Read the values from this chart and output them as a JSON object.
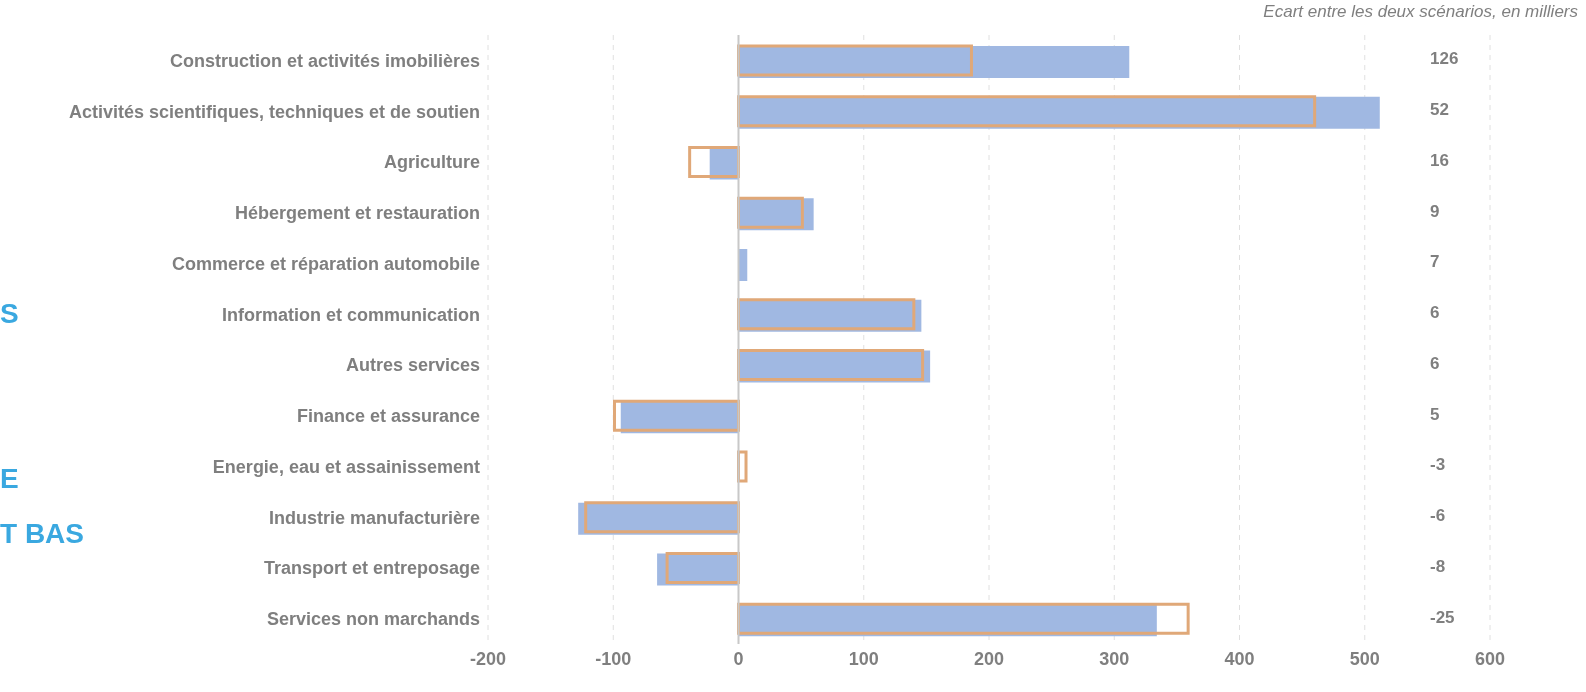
{
  "chart_data": {
    "type": "bar",
    "orientation": "horizontal",
    "subtitle": "Ecart entre les deux scénarios, en milliers",
    "categories": [
      "Construction et activités imobilières",
      "Activités scientifiques, techniques et de soutien",
      "Agriculture",
      "Hébergement et restauration",
      "Commerce et réparation automobile",
      "Information et communication",
      "Autres services",
      "Finance et assurance",
      "Energie, eau et assainissement",
      "Industrie manufacturière",
      "Transport et entreposage",
      "Services non marchands"
    ],
    "series": [
      {
        "color": "#a0b8e2",
        "values": [
          312,
          512,
          -23,
          60,
          7,
          146,
          153,
          -94,
          null,
          -128,
          -65,
          334
        ]
      },
      {
        "color": "#e0a878",
        "values": [
          186,
          460,
          -39,
          51,
          0,
          140,
          147,
          -99,
          6,
          -122,
          -57,
          359
        ]
      }
    ],
    "xlim": [
      -200,
      600
    ],
    "xticks": [
      -200,
      -100,
      0,
      100,
      200,
      300,
      400,
      500,
      600
    ],
    "grid": "x",
    "legend": false,
    "ref_lines": [
      {
        "axis": "x",
        "value": 0,
        "color": "#c8c8c8"
      }
    ],
    "annotations": [
      "126",
      "52",
      "16",
      "9",
      "7",
      "6",
      "6",
      "5",
      "-3",
      "-6",
      "-8",
      "-25",
      "S",
      "E",
      "T BAS"
    ]
  }
}
